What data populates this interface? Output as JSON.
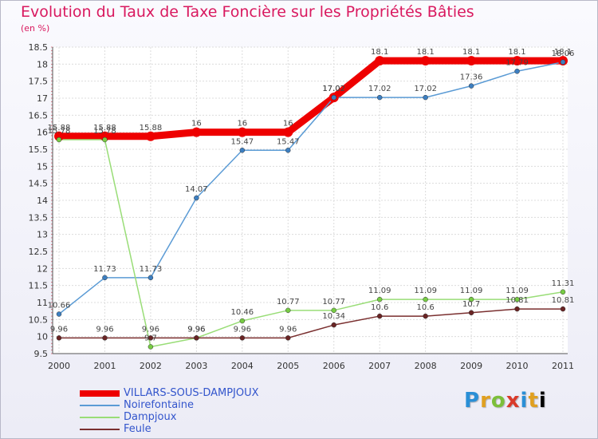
{
  "chart_data": {
    "type": "line",
    "title": "Evolution du Taux de Taxe Foncière sur les Propriétés Bâties",
    "subtitle": "(en %)",
    "xlabel": "",
    "ylabel": "",
    "x": [
      "2000",
      "2001",
      "2002",
      "2003",
      "2004",
      "2005",
      "2006",
      "2007",
      "2008",
      "2009",
      "2010",
      "2011"
    ],
    "ylim": [
      9.5,
      18.5
    ],
    "yticks": [
      "9.5",
      "10",
      "10.5",
      "11",
      "11.5",
      "12",
      "12.5",
      "13",
      "13.5",
      "14",
      "14.5",
      "15",
      "15.5",
      "16",
      "16.5",
      "17",
      "17.5",
      "18",
      "18.5"
    ],
    "grid": true,
    "series": [
      {
        "name": "VILLARS-SOUS-DAMPJOUX",
        "color": "#ee0000",
        "values": [
          15.88,
          15.88,
          15.88,
          16,
          16,
          16,
          17.02,
          18.1,
          18.1,
          18.1,
          18.1,
          18.1
        ],
        "labels": [
          "15.88",
          "15.88",
          "15.88",
          "16",
          "16",
          "16",
          "17.02",
          "18.1",
          "18.1",
          "18.1",
          "18.1",
          "18.1"
        ]
      },
      {
        "name": "Noirefontaine",
        "color": "#5b9bd5",
        "values": [
          10.66,
          11.73,
          11.73,
          14.07,
          15.47,
          15.47,
          17.02,
          17.02,
          17.02,
          17.36,
          17.79,
          18.06
        ],
        "labels": [
          "10.66",
          "11.73",
          "11.73",
          "14.07",
          "15.47",
          "15.47",
          "17.02",
          "17.02",
          "17.02",
          "17.36",
          "17.79",
          "18.06"
        ]
      },
      {
        "name": "Dampjoux",
        "color": "#99dd77",
        "values": [
          15.78,
          15.78,
          9.7,
          9.96,
          10.46,
          10.77,
          10.77,
          11.09,
          11.09,
          11.09,
          11.09,
          11.31
        ],
        "labels": [
          "15.78",
          "15.78",
          "9.7",
          "9.96",
          "10.46",
          "10.77",
          "10.77",
          "11.09",
          "11.09",
          "11.09",
          "11.09",
          "11.31"
        ]
      },
      {
        "name": "Feule",
        "color": "#7a2f2f",
        "values": [
          9.96,
          9.96,
          9.96,
          9.96,
          9.96,
          9.96,
          10.34,
          10.6,
          10.6,
          10.7,
          10.81,
          10.81
        ],
        "labels": [
          "9.96",
          "9.96",
          "9.96",
          "9.96",
          "9.96",
          "9.96",
          "10.34",
          "10.6",
          "10.6",
          "10.7",
          "10.81",
          "10.81"
        ]
      }
    ]
  },
  "branding": {
    "letters": [
      "P",
      "r",
      "o",
      "x",
      "i",
      "t",
      "i"
    ]
  }
}
